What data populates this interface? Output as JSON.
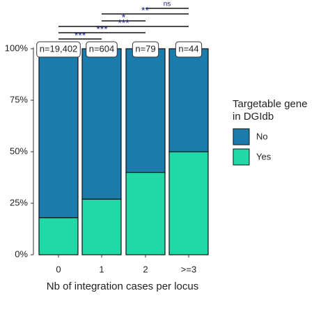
{
  "chart_data": {
    "type": "stacked_bar",
    "categories": [
      "0",
      "1",
      "2",
      ">=3"
    ],
    "series": [
      {
        "name": "Yes",
        "color": "#21d9a6",
        "values": [
          18,
          27,
          40,
          50
        ]
      },
      {
        "name": "No",
        "color": "#1b7bab",
        "values": [
          82,
          73,
          60,
          50
        ]
      }
    ],
    "ylim": [
      0,
      100
    ],
    "yticks": [
      {
        "value": 0,
        "label": "0%"
      },
      {
        "value": 25,
        "label": "25%"
      },
      {
        "value": 50,
        "label": "50%"
      },
      {
        "value": 75,
        "label": "75%"
      },
      {
        "value": 100,
        "label": "100%"
      }
    ],
    "x_label": "Nb of integration cases per locus",
    "legend_title": [
      "Targetable gene",
      "in DGIdb"
    ],
    "annotations": [
      "n=19,402",
      "n=604",
      "n=79",
      "n=44"
    ],
    "significance": [
      "ns",
      "**",
      "*",
      "***",
      "***",
      "***"
    ]
  }
}
